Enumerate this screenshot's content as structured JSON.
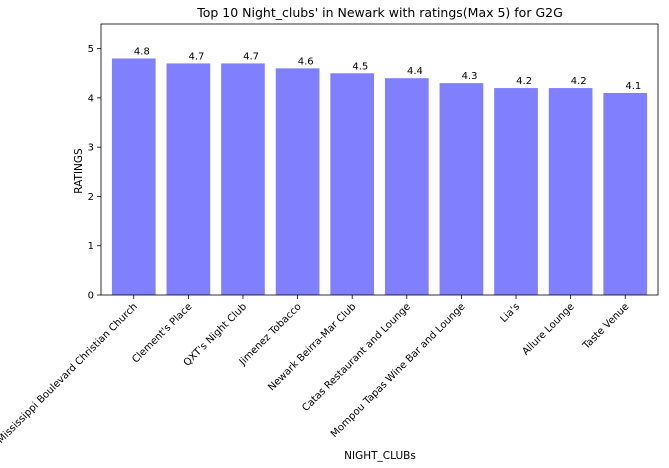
{
  "chart_data": {
    "type": "bar",
    "title": "Top 10 Night_clubs' in Newark with ratings(Max 5) for G2G",
    "xlabel": "NIGHT_CLUBs",
    "ylabel": "RATINGS",
    "ylim": [
      0,
      5.5
    ],
    "yticks": [
      "0",
      "1",
      "2",
      "3",
      "4",
      "5"
    ],
    "grid": false,
    "bar_color": "#8080ff",
    "categories": [
      "Mississippi Boulevard Christian Church",
      "Clement's Place",
      "QXT's Night Club",
      "Jimenez Tobacco",
      "Newark Beirra-Mar Club",
      "Catas Restaurant and Lounge",
      "Mompou Tapas Wine Bar and Lounge",
      "Lia's",
      "Allure Lounge",
      "Taste Venue"
    ],
    "values": [
      4.8,
      4.7,
      4.7,
      4.6,
      4.5,
      4.4,
      4.3,
      4.2,
      4.2,
      4.1
    ],
    "value_labels": [
      "4.8",
      "4.7",
      "4.7",
      "4.6",
      "4.5",
      "4.4",
      "4.3",
      "4.2",
      "4.2",
      "4.1"
    ]
  }
}
